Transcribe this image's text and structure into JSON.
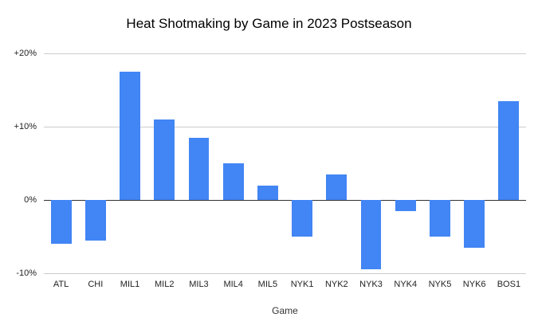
{
  "colors": {
    "bar": "#4285f4",
    "gridline": "#cccccc",
    "zero_line": "#333333",
    "background": "#ffffff",
    "text": "#222222"
  },
  "chart_data": {
    "type": "bar",
    "title": "Heat Shotmaking by Game in 2023 Postseason",
    "xlabel": "Game",
    "ylabel": "",
    "categories": [
      "ATL",
      "CHI",
      "MIL1",
      "MIL2",
      "MIL3",
      "MIL4",
      "MIL5",
      "NYK1",
      "NYK2",
      "NYK3",
      "NYK4",
      "NYK5",
      "NYK6",
      "BOS1"
    ],
    "values": [
      -6,
      -5.5,
      17.5,
      11,
      8.5,
      5,
      2,
      -5,
      3.5,
      -9.5,
      -1.5,
      -5,
      -6.5,
      13.5
    ],
    "value_unit": "%",
    "ylim": [
      -10,
      20
    ],
    "yticks": [
      {
        "value": 20,
        "label": "+20%"
      },
      {
        "value": 10,
        "label": "+10%"
      },
      {
        "value": 0,
        "label": "0%"
      },
      {
        "value": -10,
        "label": "-10%"
      }
    ],
    "grid": true,
    "legend": "none"
  }
}
